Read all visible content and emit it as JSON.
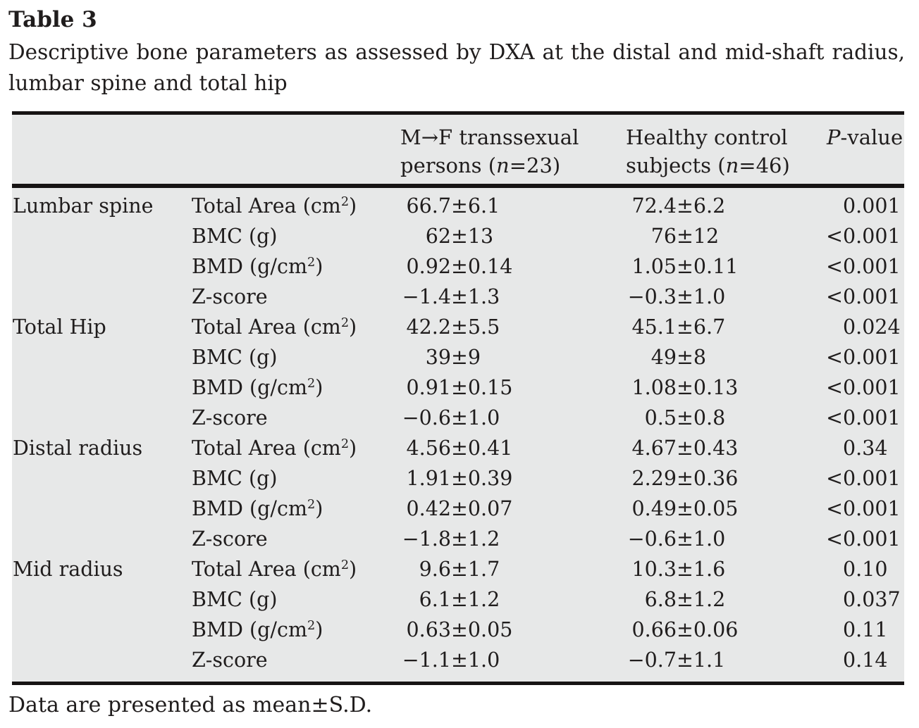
{
  "title": "Table 3",
  "caption": "Descriptive bone parameters as assessed by DXA at the distal and mid-shaft radius, lumbar spine and total hip",
  "footnote": "Data are presented as mean±S.D.",
  "symbols": {
    "pm": "±"
  },
  "colors": {
    "table_bg": "#e7e8e8",
    "rule": "#171414",
    "text": "#201d1d",
    "page_bg": "#ffffff"
  },
  "table": {
    "header": {
      "col3": {
        "line1": "M→F transsexual",
        "line2_pre": "persons (",
        "line2_var": "n",
        "line2_post": "=23)"
      },
      "col4": {
        "line1": "Healthy control",
        "line2_pre": "subjects (",
        "line2_var": "n",
        "line2_post": "=46)"
      },
      "col5": {
        "var": "P",
        "rest": "-value"
      }
    },
    "rows": [
      {
        "site": "Lumbar spine",
        "label_pre": "Total Area (cm",
        "label_sup": "2",
        "label_post": ")",
        "g1_mean": "66.7",
        "g1_sd": "6.1",
        "g2_mean": "72.4",
        "g2_sd": "6.2",
        "p_prefix": "",
        "p_value": "0.001"
      },
      {
        "site": "",
        "label_pre": "BMC (g)",
        "label_sup": "",
        "label_post": "",
        "g1_mean": "62",
        "g1_sd": "13",
        "g2_mean": "76",
        "g2_sd": "12",
        "p_prefix": "<",
        "p_value": "0.001"
      },
      {
        "site": "",
        "label_pre": "BMD (g/cm",
        "label_sup": "2",
        "label_post": ")",
        "g1_mean": "0.92",
        "g1_sd": "0.14",
        "g2_mean": "1.05",
        "g2_sd": "0.11",
        "p_prefix": "<",
        "p_value": "0.001"
      },
      {
        "site": "",
        "label_pre": "Z-score",
        "label_sup": "",
        "label_post": "",
        "g1_mean": "−1.4",
        "g1_sd": "1.3",
        "g2_mean": "−0.3",
        "g2_sd": "1.0",
        "p_prefix": "<",
        "p_value": "0.001"
      },
      {
        "site": "Total Hip",
        "label_pre": "Total Area (cm",
        "label_sup": "2",
        "label_post": ")",
        "g1_mean": "42.2",
        "g1_sd": "5.5",
        "g2_mean": "45.1",
        "g2_sd": "6.7",
        "p_prefix": "",
        "p_value": "0.024"
      },
      {
        "site": "",
        "label_pre": "BMC (g)",
        "label_sup": "",
        "label_post": "",
        "g1_mean": "39",
        "g1_sd": "9",
        "g2_mean": "49",
        "g2_sd": "8",
        "p_prefix": "<",
        "p_value": "0.001"
      },
      {
        "site": "",
        "label_pre": "BMD (g/cm",
        "label_sup": "2",
        "label_post": ")",
        "g1_mean": "0.91",
        "g1_sd": "0.15",
        "g2_mean": "1.08",
        "g2_sd": "0.13",
        "p_prefix": "<",
        "p_value": "0.001"
      },
      {
        "site": "",
        "label_pre": "Z-score",
        "label_sup": "",
        "label_post": "",
        "g1_mean": "−0.6",
        "g1_sd": "1.0",
        "g2_mean": "0.5",
        "g2_sd": "0.8",
        "p_prefix": "<",
        "p_value": "0.001"
      },
      {
        "site": "Distal radius",
        "label_pre": "Total Area (cm",
        "label_sup": "2",
        "label_post": ")",
        "g1_mean": "4.56",
        "g1_sd": "0.41",
        "g2_mean": "4.67",
        "g2_sd": "0.43",
        "p_prefix": "",
        "p_value": "0.34"
      },
      {
        "site": "",
        "label_pre": "BMC (g)",
        "label_sup": "",
        "label_post": "",
        "g1_mean": "1.91",
        "g1_sd": "0.39",
        "g2_mean": "2.29",
        "g2_sd": "0.36",
        "p_prefix": "<",
        "p_value": "0.001"
      },
      {
        "site": "",
        "label_pre": "BMD (g/cm",
        "label_sup": "2",
        "label_post": ")",
        "g1_mean": "0.42",
        "g1_sd": "0.07",
        "g2_mean": "0.49",
        "g2_sd": "0.05",
        "p_prefix": "<",
        "p_value": "0.001"
      },
      {
        "site": "",
        "label_pre": "Z-score",
        "label_sup": "",
        "label_post": "",
        "g1_mean": "−1.8",
        "g1_sd": "1.2",
        "g2_mean": "−0.6",
        "g2_sd": "1.0",
        "p_prefix": "<",
        "p_value": "0.001"
      },
      {
        "site": "Mid radius",
        "label_pre": "Total Area (cm",
        "label_sup": "2",
        "label_post": ")",
        "g1_mean": "9.6",
        "g1_sd": "1.7",
        "g2_mean": "10.3",
        "g2_sd": "1.6",
        "p_prefix": "",
        "p_value": "0.10"
      },
      {
        "site": "",
        "label_pre": "BMC (g)",
        "label_sup": "",
        "label_post": "",
        "g1_mean": "6.1",
        "g1_sd": "1.2",
        "g2_mean": "6.8",
        "g2_sd": "1.2",
        "p_prefix": "",
        "p_value": "0.037"
      },
      {
        "site": "",
        "label_pre": "BMD (g/cm",
        "label_sup": "2",
        "label_post": ")",
        "g1_mean": "0.63",
        "g1_sd": "0.05",
        "g2_mean": "0.66",
        "g2_sd": "0.06",
        "p_prefix": "",
        "p_value": "0.11"
      },
      {
        "site": "",
        "label_pre": "Z-score",
        "label_sup": "",
        "label_post": "",
        "g1_mean": "−1.1",
        "g1_sd": "1.0",
        "g2_mean": "−0.7",
        "g2_sd": "1.1",
        "p_prefix": "",
        "p_value": "0.14"
      }
    ]
  }
}
